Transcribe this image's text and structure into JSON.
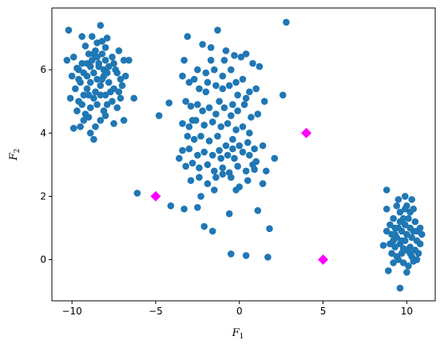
{
  "chart_data": {
    "type": "scatter",
    "title": "",
    "xlabel": "F",
    "xlabel_sub": "1",
    "ylabel": "F",
    "ylabel_sub": "2",
    "xlim": [
      -11.2,
      11.7
    ],
    "ylim": [
      -1.3,
      7.95
    ],
    "xticks": [
      -10,
      -5,
      0,
      5,
      10
    ],
    "yticks": [
      0,
      2,
      4,
      6
    ],
    "grid": false,
    "legend": "none",
    "colors": {
      "points": "#1f77b4",
      "centroids": "#ff00ff"
    },
    "series": [
      {
        "marker": "circle",
        "points": [
          [
            -10.2,
            7.25
          ],
          [
            -9.4,
            7.05
          ],
          [
            -8.5,
            6.85
          ],
          [
            -7.9,
            7.0
          ],
          [
            -8.3,
            7.4
          ],
          [
            -10.3,
            6.3
          ],
          [
            -9.9,
            6.4
          ],
          [
            -9.7,
            6.05
          ],
          [
            -10.0,
            5.8
          ],
          [
            -9.6,
            5.7
          ],
          [
            -9.3,
            5.9
          ],
          [
            -9.1,
            6.2
          ],
          [
            -9.0,
            6.5
          ],
          [
            -8.8,
            6.3
          ],
          [
            -8.6,
            6.6
          ],
          [
            -8.4,
            6.2
          ],
          [
            -8.2,
            6.5
          ],
          [
            -8.0,
            6.3
          ],
          [
            -7.8,
            6.1
          ],
          [
            -7.5,
            6.2
          ],
          [
            -7.3,
            5.9
          ],
          [
            -7.1,
            5.7
          ],
          [
            -6.9,
            6.3
          ],
          [
            -7.0,
            5.5
          ],
          [
            -7.2,
            5.3
          ],
          [
            -7.5,
            5.4
          ],
          [
            -7.8,
            5.6
          ],
          [
            -8.1,
            5.8
          ],
          [
            -8.3,
            5.5
          ],
          [
            -8.5,
            5.7
          ],
          [
            -8.7,
            5.9
          ],
          [
            -8.9,
            5.6
          ],
          [
            -9.1,
            5.4
          ],
          [
            -9.3,
            5.2
          ],
          [
            -9.5,
            5.6
          ],
          [
            -9.8,
            5.4
          ],
          [
            -10.1,
            5.1
          ],
          [
            -9.7,
            4.7
          ],
          [
            -9.4,
            4.9
          ],
          [
            -9.2,
            4.6
          ],
          [
            -8.9,
            4.8
          ],
          [
            -8.7,
            5.1
          ],
          [
            -8.5,
            4.9
          ],
          [
            -8.3,
            5.2
          ],
          [
            -8.1,
            4.7
          ],
          [
            -7.9,
            4.9
          ],
          [
            -7.6,
            5.0
          ],
          [
            -7.3,
            4.8
          ],
          [
            -7.1,
            5.1
          ],
          [
            -6.3,
            5.1
          ],
          [
            -6.6,
            6.3
          ],
          [
            -6.9,
            4.4
          ],
          [
            -8.3,
            4.4
          ],
          [
            -8.6,
            4.2
          ],
          [
            -9.0,
            4.5
          ],
          [
            -9.3,
            4.4
          ],
          [
            -9.5,
            4.2
          ],
          [
            -8.9,
            4.0
          ],
          [
            -8.7,
            3.8
          ],
          [
            -9.9,
            4.15
          ],
          [
            -8.0,
            4.55
          ],
          [
            -8.2,
            6.9
          ],
          [
            -8.8,
            7.05
          ],
          [
            -9.2,
            6.75
          ],
          [
            -9.6,
            6.0
          ],
          [
            -8.4,
            6.1
          ],
          [
            -8.6,
            5.3
          ],
          [
            -8.0,
            5.2
          ],
          [
            -7.7,
            5.3
          ],
          [
            -7.4,
            6.0
          ],
          [
            -8.9,
            6.1
          ],
          [
            -9.1,
            5.8
          ],
          [
            -8.1,
            6.0
          ],
          [
            -8.5,
            6.4
          ],
          [
            -7.6,
            6.4
          ],
          [
            -9.4,
            6.2
          ],
          [
            -8.2,
            5.7
          ],
          [
            -7.9,
            5.9
          ],
          [
            -8.7,
            6.5
          ],
          [
            -9.6,
            5.0
          ],
          [
            -7.2,
            6.6
          ],
          [
            -8.0,
            6.7
          ],
          [
            -7.5,
            4.3
          ],
          [
            -9.0,
            5.2
          ],
          [
            -6.8,
            5.8
          ],
          [
            -3.3,
            6.3
          ],
          [
            -3.1,
            7.05
          ],
          [
            -2.2,
            6.8
          ],
          [
            -1.3,
            7.25
          ],
          [
            -1.7,
            6.7
          ],
          [
            -0.8,
            6.6
          ],
          [
            -0.3,
            6.45
          ],
          [
            0.1,
            6.4
          ],
          [
            0.4,
            6.5
          ],
          [
            0.8,
            6.2
          ],
          [
            1.2,
            6.1
          ],
          [
            -2.5,
            6.0
          ],
          [
            -2.0,
            5.9
          ],
          [
            -1.5,
            6.0
          ],
          [
            -1.0,
            5.8
          ],
          [
            -0.5,
            6.0
          ],
          [
            -3.4,
            5.8
          ],
          [
            -3.0,
            5.6
          ],
          [
            -2.7,
            5.7
          ],
          [
            -2.4,
            5.4
          ],
          [
            -1.9,
            5.6
          ],
          [
            -1.4,
            5.5
          ],
          [
            -1.0,
            5.4
          ],
          [
            -0.6,
            5.5
          ],
          [
            -0.2,
            5.6
          ],
          [
            0.2,
            5.7
          ],
          [
            0.6,
            5.3
          ],
          [
            1.0,
            5.4
          ],
          [
            1.5,
            5.0
          ],
          [
            2.6,
            5.2
          ],
          [
            -3.2,
            5.0
          ],
          [
            -2.9,
            4.85
          ],
          [
            -2.5,
            4.9
          ],
          [
            -2.2,
            4.7
          ],
          [
            -1.8,
            4.8
          ],
          [
            -1.4,
            4.6
          ],
          [
            -0.9,
            4.8
          ],
          [
            -0.5,
            4.55
          ],
          [
            -0.1,
            4.7
          ],
          [
            0.3,
            4.9
          ],
          [
            0.7,
            4.5
          ],
          [
            1.1,
            4.6
          ],
          [
            -4.2,
            4.95
          ],
          [
            -4.8,
            4.55
          ],
          [
            -3.4,
            4.3
          ],
          [
            -3.0,
            4.2
          ],
          [
            -2.6,
            4.4
          ],
          [
            -2.1,
            4.25
          ],
          [
            -1.6,
            4.35
          ],
          [
            -1.1,
            4.2
          ],
          [
            -0.7,
            4.3
          ],
          [
            -0.2,
            4.1
          ],
          [
            0.2,
            4.2
          ],
          [
            0.6,
            4.0
          ],
          [
            -3.1,
            3.9
          ],
          [
            -2.7,
            3.8
          ],
          [
            -2.3,
            3.9
          ],
          [
            -1.8,
            3.75
          ],
          [
            -1.3,
            3.9
          ],
          [
            -0.8,
            3.6
          ],
          [
            -0.4,
            3.8
          ],
          [
            0.0,
            3.6
          ],
          [
            0.5,
            3.7
          ],
          [
            0.9,
            3.5
          ],
          [
            1.4,
            3.6
          ],
          [
            -3.4,
            3.45
          ],
          [
            -3.0,
            3.5
          ],
          [
            -2.5,
            3.3
          ],
          [
            -2.1,
            3.4
          ],
          [
            -1.6,
            3.3
          ],
          [
            -1.2,
            3.45
          ],
          [
            -0.7,
            3.3
          ],
          [
            -0.3,
            3.2
          ],
          [
            0.2,
            3.4
          ],
          [
            0.6,
            3.3
          ],
          [
            1.0,
            3.1
          ],
          [
            -3.2,
            2.95
          ],
          [
            -2.8,
            3.05
          ],
          [
            -2.4,
            2.9
          ],
          [
            -1.9,
            3.0
          ],
          [
            -1.5,
            2.8
          ],
          [
            -1.0,
            2.9
          ],
          [
            -0.6,
            2.75
          ],
          [
            -0.1,
            2.95
          ],
          [
            0.4,
            2.8
          ],
          [
            0.9,
            2.85
          ],
          [
            1.6,
            2.8
          ],
          [
            2.1,
            3.2
          ],
          [
            -2.9,
            2.5
          ],
          [
            -2.4,
            2.6
          ],
          [
            -1.9,
            2.4
          ],
          [
            -1.4,
            2.6
          ],
          [
            -1.0,
            2.7
          ],
          [
            -0.5,
            2.6
          ],
          [
            0.0,
            2.3
          ],
          [
            0.5,
            2.5
          ],
          [
            -1.5,
            2.2
          ],
          [
            -0.2,
            2.2
          ],
          [
            1.4,
            2.4
          ],
          [
            -2.5,
            1.65
          ],
          [
            -3.3,
            1.6
          ],
          [
            -4.1,
            1.7
          ],
          [
            -6.1,
            2.1
          ],
          [
            -2.1,
            1.05
          ],
          [
            -1.6,
            0.9
          ],
          [
            -0.6,
            1.45
          ],
          [
            1.1,
            1.55
          ],
          [
            1.8,
            0.98
          ],
          [
            -0.5,
            0.18
          ],
          [
            0.4,
            0.13
          ],
          [
            1.7,
            0.08
          ],
          [
            2.8,
            7.5
          ],
          [
            -0.1,
            5.2
          ],
          [
            -0.4,
            4.9
          ],
          [
            -2.0,
            5.3
          ],
          [
            -1.2,
            5.0
          ],
          [
            -2.8,
            4.4
          ],
          [
            0.4,
            5.1
          ],
          [
            -1.7,
            6.3
          ],
          [
            -0.9,
            6.3
          ],
          [
            -1.1,
            3.2
          ],
          [
            -0.4,
            3.5
          ],
          [
            0.8,
            3.0
          ],
          [
            -2.3,
            2.0
          ],
          [
            -3.6,
            3.2
          ],
          [
            8.8,
            2.2
          ],
          [
            9.9,
            2.0
          ],
          [
            10.3,
            1.9
          ],
          [
            9.4,
            1.7
          ],
          [
            9.6,
            1.5
          ],
          [
            9.9,
            1.6
          ],
          [
            10.2,
            1.5
          ],
          [
            10.5,
            1.2
          ],
          [
            9.2,
            1.3
          ],
          [
            9.0,
            1.1
          ],
          [
            8.8,
            0.9
          ],
          [
            9.3,
            1.0
          ],
          [
            9.6,
            1.2
          ],
          [
            9.9,
            1.1
          ],
          [
            10.2,
            1.0
          ],
          [
            10.6,
            0.9
          ],
          [
            10.8,
            1.0
          ],
          [
            9.1,
            0.8
          ],
          [
            9.4,
            0.7
          ],
          [
            9.7,
            0.9
          ],
          [
            10.0,
            0.8
          ],
          [
            10.3,
            0.7
          ],
          [
            10.6,
            0.6
          ],
          [
            8.6,
            0.45
          ],
          [
            9.0,
            0.5
          ],
          [
            9.3,
            0.4
          ],
          [
            9.6,
            0.5
          ],
          [
            9.9,
            0.6
          ],
          [
            10.2,
            0.4
          ],
          [
            10.5,
            0.3
          ],
          [
            10.8,
            0.5
          ],
          [
            9.1,
            0.2
          ],
          [
            9.4,
            0.1
          ],
          [
            9.7,
            0.2
          ],
          [
            10.0,
            0.3
          ],
          [
            10.3,
            0.1
          ],
          [
            10.6,
            0.0
          ],
          [
            9.2,
            -0.1
          ],
          [
            9.5,
            0.0
          ],
          [
            9.8,
            -0.1
          ],
          [
            10.1,
            -0.2
          ],
          [
            10.4,
            -0.05
          ],
          [
            8.9,
            -0.35
          ],
          [
            10.0,
            -0.4
          ],
          [
            9.6,
            -0.9
          ],
          [
            8.8,
            1.6
          ],
          [
            10.9,
            0.8
          ],
          [
            9.5,
            1.9
          ],
          [
            10.4,
            1.6
          ],
          [
            9.8,
            1.3
          ],
          [
            9.3,
            0.8
          ],
          [
            10.1,
            1.3
          ],
          [
            9.7,
            0.6
          ],
          [
            10.2,
            0.2
          ],
          [
            9.5,
            1.0
          ],
          [
            10.0,
            1.7
          ],
          [
            9.2,
            0.6
          ],
          [
            10.4,
            0.9
          ],
          [
            9.8,
            0.35
          ],
          [
            10.7,
            0.2
          ]
        ]
      },
      {
        "marker": "diamond",
        "points": [
          [
            -5,
            2
          ],
          [
            4,
            4
          ],
          [
            5,
            0
          ]
        ]
      }
    ]
  }
}
